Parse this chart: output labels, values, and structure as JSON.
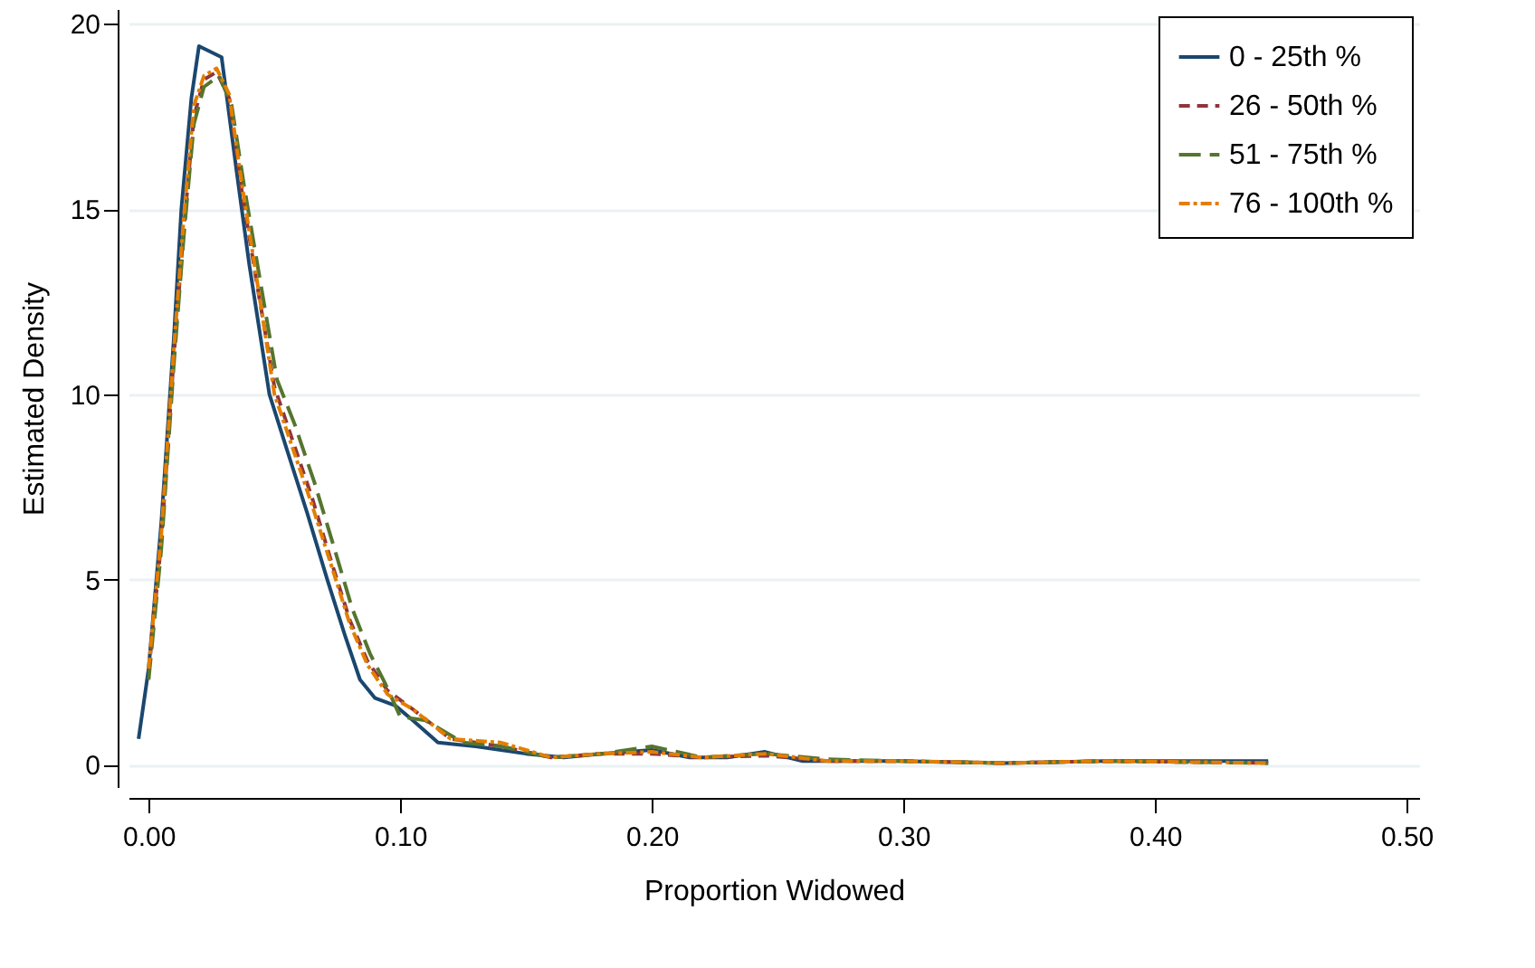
{
  "chart_data": {
    "type": "line",
    "xlabel": "Proportion Widowed",
    "ylabel": "Estimated Density",
    "xlim": [
      -0.008,
      0.505
    ],
    "ylim": [
      -0.6,
      20.4
    ],
    "xticks": [
      {
        "value": 0,
        "label": "0.00"
      },
      {
        "value": 0.1,
        "label": "0.10"
      },
      {
        "value": 0.2,
        "label": "0.20"
      },
      {
        "value": 0.3,
        "label": "0.30"
      },
      {
        "value": 0.4,
        "label": "0.40"
      },
      {
        "value": 0.5,
        "label": "0.50"
      }
    ],
    "yticks": [
      0,
      5,
      10,
      15,
      20
    ],
    "grid": "y",
    "legend": "top right",
    "series": [
      {
        "name": "0 - 25th %",
        "color": "#1a476f",
        "line_style": "solid",
        "x": [
          -0.004,
          0.0,
          0.005,
          0.01,
          0.013,
          0.017,
          0.02,
          0.029,
          0.035,
          0.04,
          0.048,
          0.055,
          0.063,
          0.071,
          0.078,
          0.084,
          0.09,
          0.098,
          0.105,
          0.115,
          0.13,
          0.15,
          0.165,
          0.18,
          0.2,
          0.215,
          0.23,
          0.245,
          0.26,
          0.3,
          0.34,
          0.38,
          0.445
        ],
        "values": [
          0.7,
          2.6,
          6.5,
          11.5,
          15.0,
          18.0,
          19.4,
          19.1,
          16.0,
          13.5,
          10.0,
          8.5,
          6.8,
          5.0,
          3.5,
          2.3,
          1.8,
          1.6,
          1.2,
          0.6,
          0.5,
          0.3,
          0.2,
          0.3,
          0.4,
          0.2,
          0.2,
          0.35,
          0.1,
          0.1,
          0.05,
          0.1,
          0.1
        ]
      },
      {
        "name": "26 - 50th %",
        "color": "#90353b",
        "line_style": "dashed",
        "x": [
          0.0,
          0.005,
          0.01,
          0.014,
          0.018,
          0.022,
          0.027,
          0.032,
          0.037,
          0.043,
          0.05,
          0.057,
          0.065,
          0.073,
          0.08,
          0.087,
          0.095,
          0.105,
          0.12,
          0.14,
          0.16,
          0.18,
          0.2,
          0.22,
          0.245,
          0.27,
          0.3,
          0.34,
          0.38,
          0.445
        ],
        "values": [
          2.5,
          6.0,
          11.0,
          14.5,
          17.5,
          18.5,
          18.7,
          18.0,
          15.5,
          13.0,
          10.2,
          8.8,
          7.2,
          5.4,
          3.9,
          2.8,
          2.0,
          1.5,
          0.7,
          0.5,
          0.2,
          0.3,
          0.3,
          0.2,
          0.25,
          0.1,
          0.1,
          0.05,
          0.1,
          0.05
        ]
      },
      {
        "name": "51 - 75th %",
        "color": "#55752f",
        "line_style": "dashed",
        "x": [
          0.0,
          0.005,
          0.01,
          0.014,
          0.018,
          0.022,
          0.028,
          0.033,
          0.038,
          0.044,
          0.051,
          0.058,
          0.066,
          0.074,
          0.081,
          0.088,
          0.094,
          0.1,
          0.11,
          0.125,
          0.14,
          0.16,
          0.18,
          0.2,
          0.22,
          0.245,
          0.27,
          0.3,
          0.34,
          0.38,
          0.445
        ],
        "values": [
          2.3,
          5.8,
          10.8,
          14.3,
          17.3,
          18.3,
          18.6,
          17.8,
          15.6,
          13.2,
          10.4,
          9.2,
          7.6,
          5.8,
          4.2,
          3.0,
          2.2,
          1.3,
          1.2,
          0.6,
          0.5,
          0.2,
          0.3,
          0.5,
          0.2,
          0.3,
          0.15,
          0.1,
          0.05,
          0.1,
          0.05
        ]
      },
      {
        "name": "76 - 100th %",
        "color": "#e37e00",
        "line_style": "dotted",
        "x": [
          0.0,
          0.005,
          0.01,
          0.014,
          0.018,
          0.022,
          0.027,
          0.032,
          0.037,
          0.043,
          0.05,
          0.057,
          0.065,
          0.073,
          0.08,
          0.087,
          0.095,
          0.105,
          0.12,
          0.14,
          0.16,
          0.18,
          0.2,
          0.22,
          0.245,
          0.27,
          0.3,
          0.34,
          0.38,
          0.445
        ],
        "values": [
          2.6,
          6.2,
          11.2,
          14.8,
          17.8,
          18.6,
          18.8,
          18.1,
          15.7,
          13.1,
          10.0,
          8.6,
          7.0,
          5.3,
          3.8,
          2.7,
          1.9,
          1.5,
          0.7,
          0.6,
          0.2,
          0.3,
          0.35,
          0.2,
          0.3,
          0.1,
          0.1,
          0.05,
          0.1,
          0.05
        ]
      }
    ]
  }
}
